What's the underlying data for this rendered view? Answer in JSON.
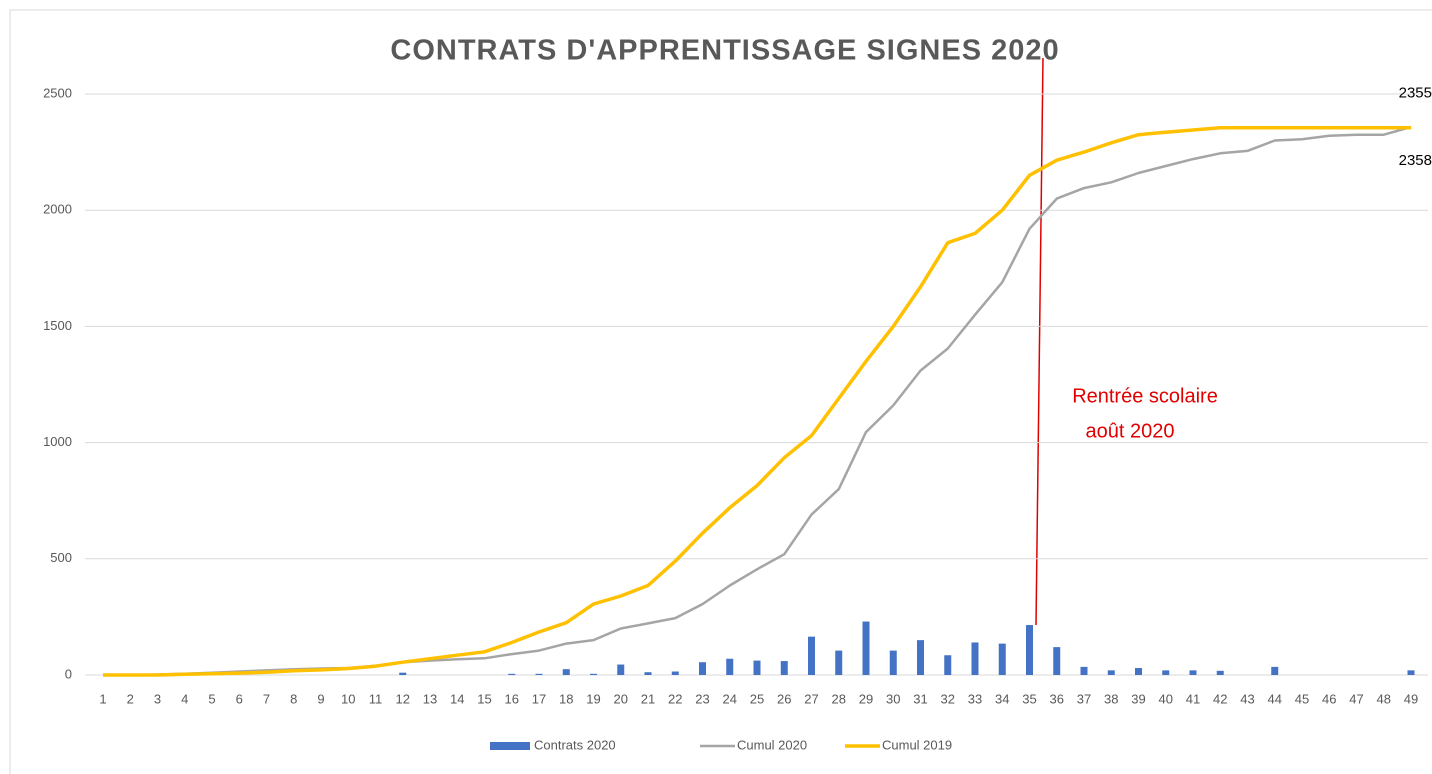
{
  "chart_data": {
    "type": "combo",
    "title": "CONTRATS D'APPRENTISSAGE SIGNES 2020",
    "categories": [
      "1",
      "2",
      "3",
      "4",
      "5",
      "6",
      "7",
      "8",
      "9",
      "10",
      "11",
      "12",
      "13",
      "14",
      "15",
      "16",
      "17",
      "18",
      "19",
      "20",
      "21",
      "22",
      "23",
      "24",
      "25",
      "26",
      "27",
      "28",
      "29",
      "30",
      "31",
      "32",
      "33",
      "34",
      "35",
      "36",
      "37",
      "38",
      "39",
      "40",
      "41",
      "42",
      "43",
      "44",
      "45",
      "46",
      "47",
      "48",
      "49"
    ],
    "series": [
      {
        "name": "Contrats 2020",
        "kind": "bar",
        "color": "#4472c4",
        "values": [
          0,
          0,
          0,
          0,
          0,
          0,
          0,
          0,
          0,
          0,
          0,
          10,
          0,
          0,
          0,
          5,
          5,
          25,
          5,
          45,
          12,
          15,
          55,
          70,
          62,
          60,
          165,
          105,
          230,
          105,
          150,
          85,
          140,
          135,
          215,
          120,
          35,
          20,
          30,
          20,
          20,
          18,
          0,
          35,
          0,
          0,
          0,
          0,
          20
        ]
      },
      {
        "name": "Cumul 2020",
        "kind": "line",
        "color": "#a5a5a5",
        "values": [
          0,
          0,
          2,
          5,
          10,
          15,
          20,
          25,
          28,
          30,
          40,
          55,
          62,
          68,
          72,
          90,
          105,
          135,
          150,
          200,
          222,
          245,
          305,
          385,
          455,
          520,
          690,
          800,
          1045,
          1160,
          1310,
          1405,
          1550,
          1690,
          1920,
          2050,
          2095,
          2120,
          2160,
          2190,
          2220,
          2245,
          2255,
          2300,
          2305,
          2320,
          2325,
          2325,
          2358
        ]
      },
      {
        "name": "Cumul 2019",
        "kind": "line",
        "color": "#ffc000",
        "values": [
          0,
          0,
          0,
          3,
          5,
          8,
          12,
          18,
          22,
          28,
          38,
          55,
          70,
          85,
          100,
          140,
          185,
          225,
          305,
          340,
          385,
          490,
          610,
          720,
          815,
          935,
          1030,
          1190,
          1350,
          1500,
          1670,
          1860,
          1900,
          2000,
          2150,
          2215,
          2250,
          2290,
          2325,
          2335,
          2345,
          2355,
          2355,
          2355,
          2355,
          2355,
          2355,
          2355,
          2355
        ]
      }
    ],
    "ylim": [
      0,
      2500
    ],
    "yticks": [
      0,
      500,
      1000,
      1500,
      2000,
      2500
    ],
    "grid": true,
    "legend": "bottom",
    "annotation": [
      "Rentrée scolaire",
      "août 2020"
    ]
  }
}
